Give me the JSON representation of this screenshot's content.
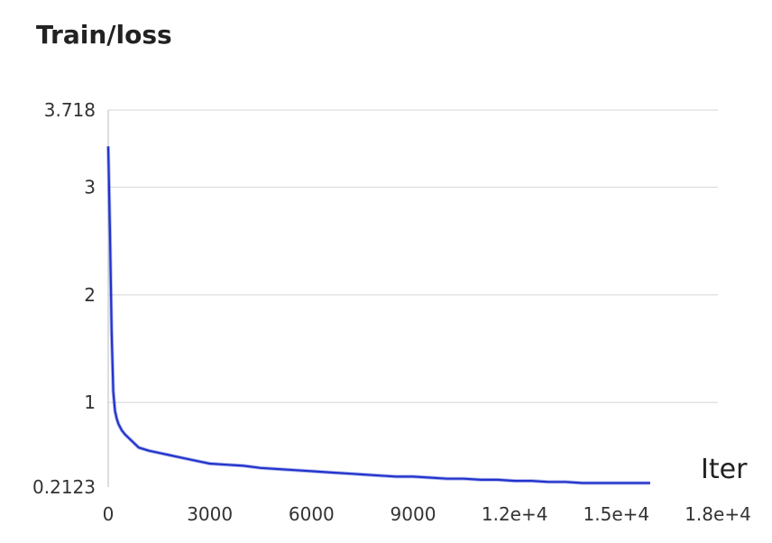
{
  "chart_data": {
    "type": "line",
    "title": "Train/loss",
    "xlabel": "Iter",
    "ylabel": "",
    "xlim": [
      0,
      18000
    ],
    "ylim": [
      0.2123,
      3.718
    ],
    "xticks": [
      0,
      3000,
      6000,
      9000,
      12000,
      15000,
      18000
    ],
    "xtick_labels": [
      "0",
      "3000",
      "6000",
      "9000",
      "1.2e+4",
      "1.5e+4",
      "1.8e+4"
    ],
    "yticks": [
      0.2123,
      1,
      2,
      3,
      3.718
    ],
    "ytick_labels": [
      "0.2123",
      "1",
      "2",
      "3",
      "3.718"
    ],
    "grid": true,
    "series": [
      {
        "color": "#2233cc",
        "x": [
          0,
          50,
          100,
          150,
          200,
          250,
          300,
          400,
          500,
          700,
          900,
          1200,
          1500,
          1800,
          2100,
          2400,
          2700,
          3000,
          3500,
          4000,
          4500,
          5000,
          5500,
          6000,
          6500,
          7000,
          7500,
          8000,
          8500,
          9000,
          9500,
          10000,
          10500,
          11000,
          11500,
          12000,
          12500,
          13000,
          13500,
          14000,
          14500,
          15000,
          15500,
          16000
        ],
        "y": [
          3.38,
          2.6,
          1.65,
          1.1,
          0.92,
          0.85,
          0.8,
          0.74,
          0.7,
          0.64,
          0.58,
          0.55,
          0.53,
          0.51,
          0.49,
          0.47,
          0.45,
          0.43,
          0.42,
          0.41,
          0.39,
          0.38,
          0.37,
          0.36,
          0.35,
          0.34,
          0.33,
          0.32,
          0.31,
          0.31,
          0.3,
          0.29,
          0.29,
          0.28,
          0.28,
          0.27,
          0.27,
          0.26,
          0.26,
          0.25,
          0.25,
          0.25,
          0.25,
          0.25
        ]
      }
    ]
  }
}
